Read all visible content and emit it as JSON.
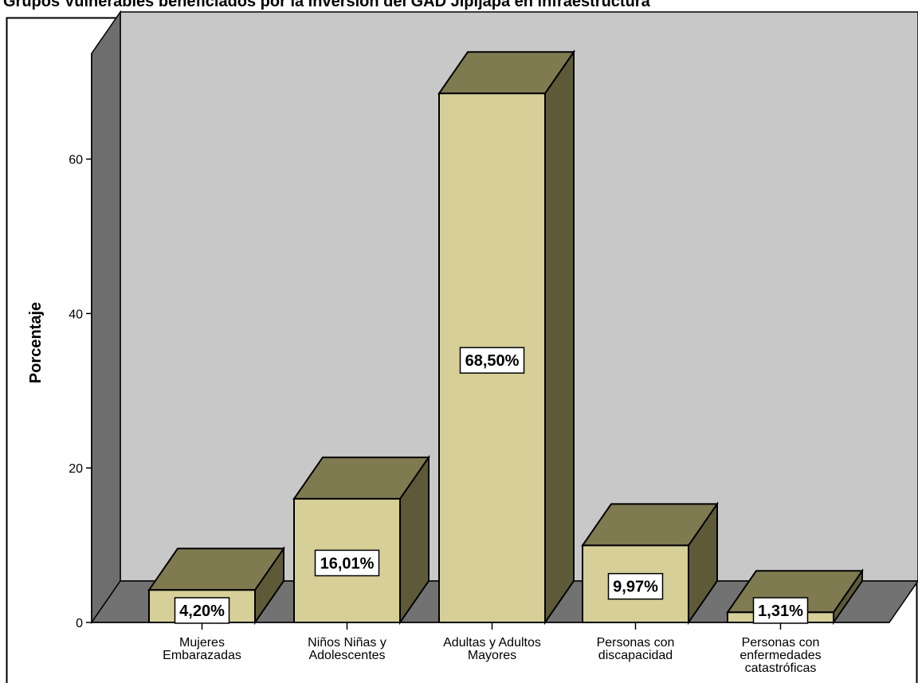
{
  "chart_data": {
    "type": "bar",
    "title": "Grupos Vulnerables beneficiados por la inversión del GAD Jipijapa en infraestructura",
    "xlabel": "",
    "ylabel": "Porcentaje",
    "ylim": [
      0,
      75
    ],
    "yticks": [
      0,
      20,
      40,
      60
    ],
    "grid": false,
    "categories": [
      [
        "Mujeres",
        "Embarazadas"
      ],
      [
        "Niños Niñas y",
        "Adolescentes"
      ],
      [
        "Adultas y Adultos",
        "Mayores"
      ],
      [
        "Personas con",
        "discapacidad"
      ],
      [
        "Personas con",
        "enfermedades",
        "catastróficas"
      ]
    ],
    "values": [
      4.2,
      16.01,
      68.5,
      9.97,
      1.31
    ],
    "data_labels": [
      "4,20%",
      "16,01%",
      "68,50%",
      "9,97%",
      "1,31%"
    ],
    "colors": {
      "bar_front": "#d6cf98",
      "bar_top": "#7f7a50",
      "bar_side": "#5e5a38",
      "back_wall": "#c8c8c8",
      "side_wall": "#6e6e6e",
      "floor": "#727272"
    }
  }
}
